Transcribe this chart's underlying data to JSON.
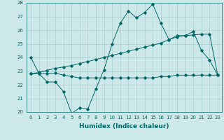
{
  "xlabel": "Humidex (Indice chaleur)",
  "x_values": [
    0,
    1,
    2,
    3,
    4,
    5,
    6,
    7,
    8,
    9,
    10,
    11,
    12,
    13,
    14,
    15,
    16,
    17,
    18,
    19,
    20,
    21,
    22,
    23
  ],
  "line1_y": [
    24.0,
    22.8,
    22.2,
    22.2,
    21.5,
    19.9,
    20.3,
    20.2,
    21.7,
    23.1,
    25.0,
    26.5,
    27.4,
    26.9,
    27.3,
    27.9,
    26.5,
    25.3,
    25.6,
    25.6,
    25.9,
    24.5,
    23.8,
    22.7
  ],
  "line2_y": [
    22.8,
    22.8,
    22.8,
    22.85,
    22.7,
    22.6,
    22.5,
    22.5,
    22.5,
    22.5,
    22.5,
    22.5,
    22.5,
    22.5,
    22.5,
    22.5,
    22.6,
    22.6,
    22.7,
    22.7,
    22.7,
    22.7,
    22.7,
    22.7
  ],
  "line3_y": [
    22.8,
    22.9,
    23.05,
    23.2,
    23.3,
    23.4,
    23.55,
    23.7,
    23.85,
    24.0,
    24.15,
    24.3,
    24.45,
    24.6,
    24.75,
    24.9,
    25.05,
    25.3,
    25.5,
    25.6,
    25.65,
    25.7,
    25.7,
    22.7
  ],
  "ylim": [
    20,
    28
  ],
  "yticks": [
    20,
    21,
    22,
    23,
    24,
    25,
    26,
    27,
    28
  ],
  "line_color": "#006666",
  "bg_color": "#cce8e8",
  "grid_color": "#aacece",
  "fig_bg": "#cce8e8",
  "tick_fontsize": 5,
  "xlabel_fontsize": 6.5
}
